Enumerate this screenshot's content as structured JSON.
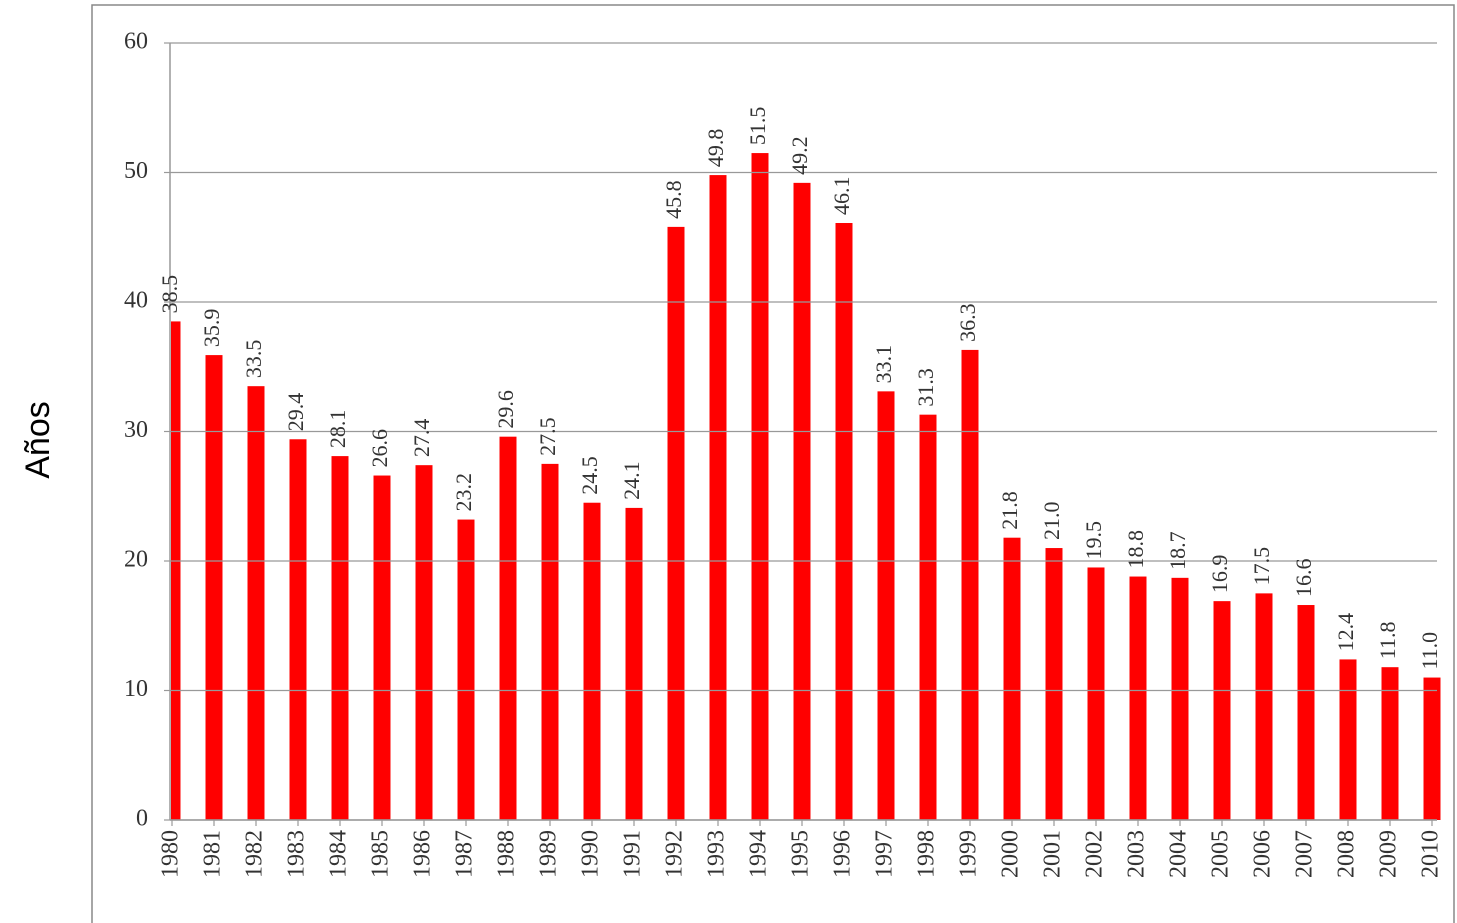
{
  "chart_data": {
    "type": "bar",
    "y_label": "Años",
    "categories": [
      "1980",
      "1981",
      "1982",
      "1983",
      "1984",
      "1985",
      "1986",
      "1987",
      "1988",
      "1989",
      "1990",
      "1991",
      "1992",
      "1993",
      "1994",
      "1995",
      "1996",
      "1997",
      "1998",
      "1999",
      "2000",
      "2001",
      "2002",
      "2003",
      "2004",
      "2005",
      "2006",
      "2007",
      "2008",
      "2009",
      "2010"
    ],
    "values": [
      38.5,
      35.9,
      33.5,
      29.4,
      28.1,
      26.6,
      27.4,
      23.2,
      29.6,
      27.5,
      24.5,
      24.1,
      45.8,
      49.8,
      51.5,
      49.2,
      46.1,
      33.1,
      31.3,
      36.3,
      21.8,
      21.0,
      19.5,
      18.8,
      18.7,
      16.9,
      17.5,
      16.6,
      12.4,
      11.8,
      11.0
    ],
    "value_labels": [
      "38.5",
      "35.9",
      "33.5",
      "29.4",
      "28.1",
      "26.6",
      "27.4",
      "23.2",
      "29.6",
      "27.5",
      "24.5",
      "24.1",
      "45.8",
      "49.8",
      "51.5",
      "49.2",
      "46.1",
      "33.1",
      "31.3",
      "36.3",
      "21.8",
      "21.0",
      "19.5",
      "18.8",
      "18.7",
      "16.9",
      "17.5",
      "16.6",
      "12.4",
      "11.8",
      "11.0"
    ],
    "color": "#ff0000",
    "ylim": [
      0,
      60
    ],
    "yticks": [
      0,
      10,
      20,
      30,
      40,
      50,
      60
    ],
    "grid": true
  }
}
